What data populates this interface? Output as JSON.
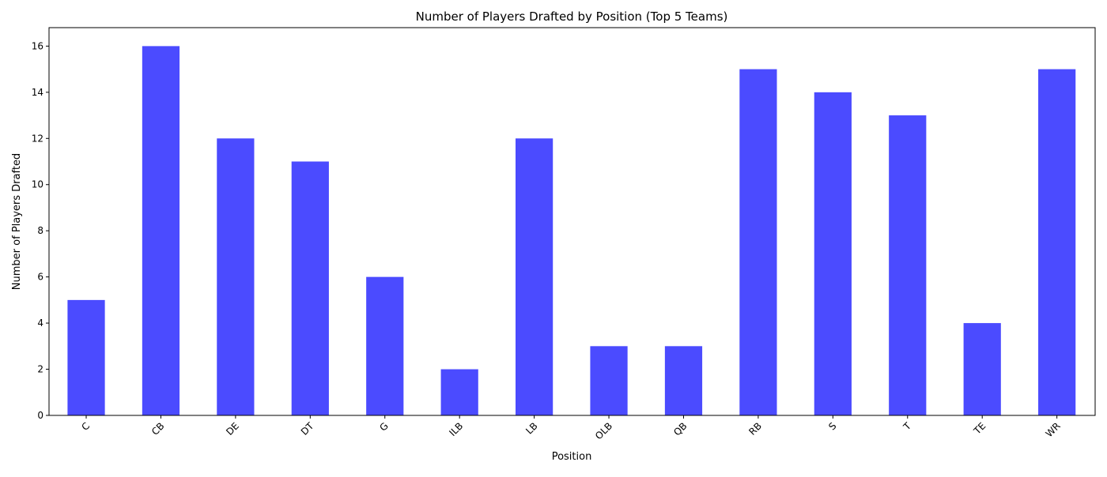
{
  "chart_data": {
    "type": "bar",
    "title": "Number of Players Drafted by Position (Top 5 Teams)",
    "xlabel": "Position",
    "ylabel": "Number of Players Drafted",
    "categories": [
      "C",
      "CB",
      "DE",
      "DT",
      "G",
      "ILB",
      "LB",
      "OLB",
      "QB",
      "RB",
      "S",
      "T",
      "TE",
      "WR"
    ],
    "values": [
      5,
      16,
      12,
      11,
      6,
      2,
      12,
      3,
      3,
      15,
      14,
      13,
      4,
      15
    ],
    "ylim": [
      0,
      16.8
    ],
    "yticks": [
      0,
      2,
      4,
      6,
      8,
      10,
      12,
      14,
      16
    ],
    "bar_color": "#4b4bff",
    "grid": false,
    "legend": "none"
  }
}
